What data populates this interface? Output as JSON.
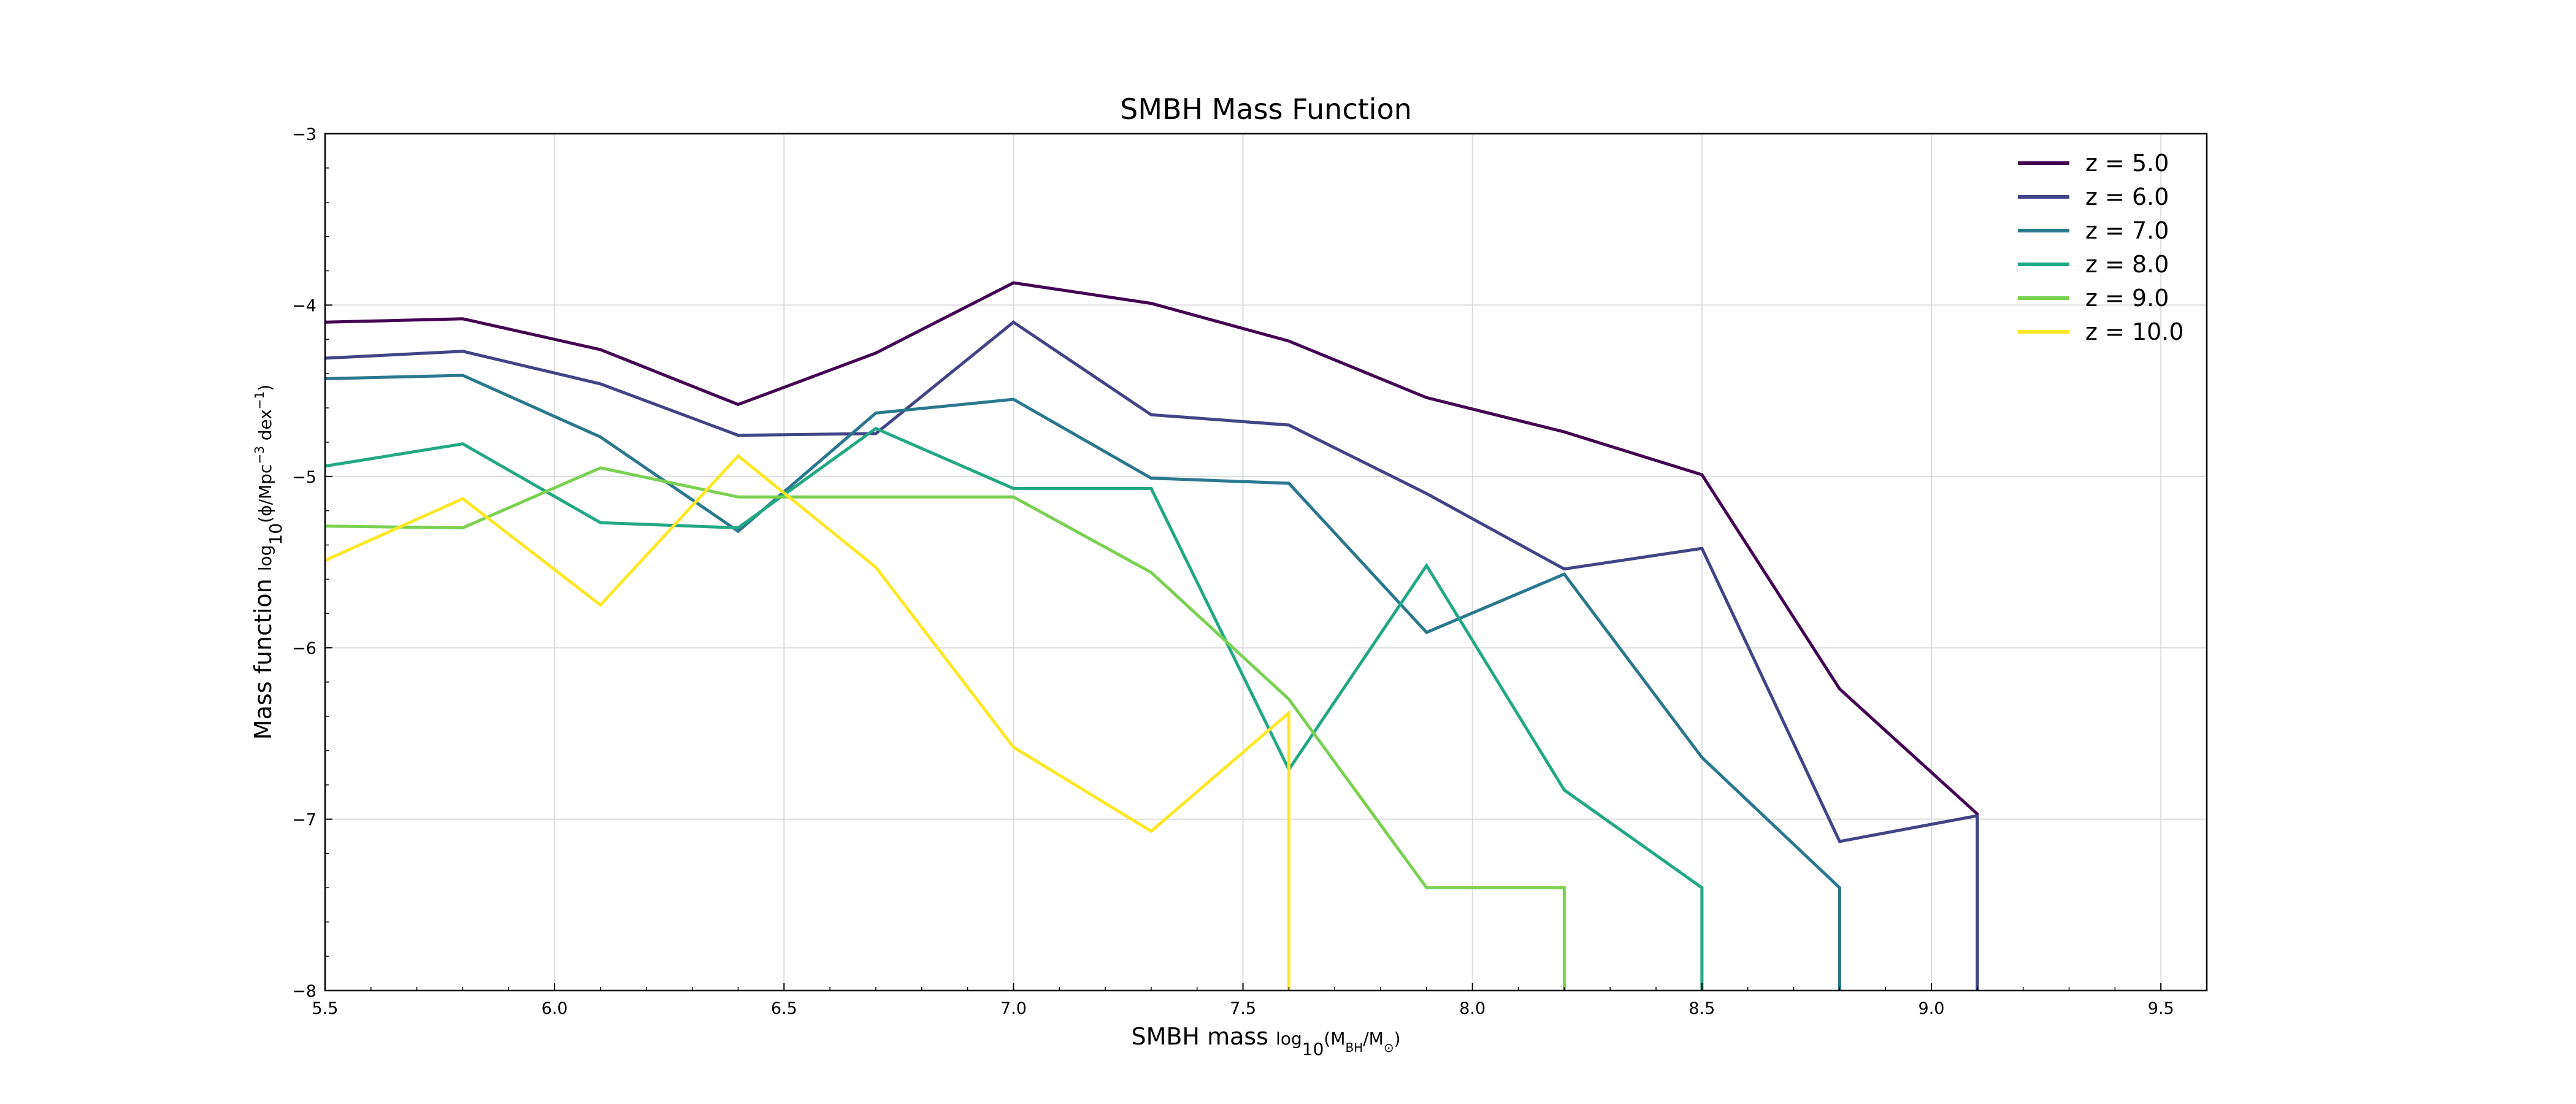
{
  "chart_data": {
    "type": "line",
    "title": "SMBH Mass Function",
    "xlabel": {
      "prefix": "SMBH mass ",
      "log": "log",
      "log_sub": "10",
      "open": "(M",
      "m_sub": "BH",
      "mid": "/M",
      "sun": "⊙",
      "close": ")"
    },
    "ylabel": {
      "prefix": "Mass function ",
      "log": "log",
      "log_sub": "10",
      "body": "(ϕ/Mpc",
      "exp1": "−3",
      "mid": " dex",
      "exp2": "−1",
      "close": ")"
    },
    "xlim": [
      5.5,
      9.6
    ],
    "ylim": [
      -8,
      -3
    ],
    "xticks": [
      5.5,
      6.0,
      6.5,
      7.0,
      7.5,
      8.0,
      8.5,
      9.0,
      9.5
    ],
    "xtick_labels": [
      "5.5",
      "6.0",
      "6.5",
      "7.0",
      "7.5",
      "8.0",
      "8.5",
      "9.0",
      "9.5"
    ],
    "yticks": [
      -3,
      -4,
      -5,
      -6,
      -7,
      -8
    ],
    "ytick_labels": [
      "−3",
      "−4",
      "−5",
      "−6",
      "−7",
      "−8"
    ],
    "grid": true,
    "legend_position": "top-right",
    "series": [
      {
        "name": "z = 5.0",
        "color": "#440154",
        "points": [
          [
            5.5,
            -4.1
          ],
          [
            5.8,
            -4.08
          ],
          [
            6.1,
            -4.26
          ],
          [
            6.4,
            -4.58
          ],
          [
            6.7,
            -4.28
          ],
          [
            7.0,
            -3.87
          ],
          [
            7.3,
            -3.99
          ],
          [
            7.6,
            -4.21
          ],
          [
            7.9,
            -4.54
          ],
          [
            8.2,
            -4.74
          ],
          [
            8.5,
            -4.99
          ],
          [
            8.8,
            -6.24
          ],
          [
            9.1,
            -6.97
          ],
          [
            9.1,
            -8.0
          ]
        ]
      },
      {
        "name": "z = 6.0",
        "color": "#414487",
        "points": [
          [
            5.5,
            -4.31
          ],
          [
            5.8,
            -4.27
          ],
          [
            6.1,
            -4.46
          ],
          [
            6.4,
            -4.76
          ],
          [
            6.7,
            -4.75
          ],
          [
            7.0,
            -4.1
          ],
          [
            7.3,
            -4.64
          ],
          [
            7.6,
            -4.7
          ],
          [
            7.9,
            -5.1
          ],
          [
            8.2,
            -5.54
          ],
          [
            8.5,
            -5.42
          ],
          [
            8.8,
            -7.13
          ],
          [
            9.1,
            -6.98
          ],
          [
            9.1,
            -8.0
          ]
        ]
      },
      {
        "name": "z = 7.0",
        "color": "#2a788e",
        "points": [
          [
            5.5,
            -4.43
          ],
          [
            5.8,
            -4.41
          ],
          [
            6.1,
            -4.77
          ],
          [
            6.4,
            -5.32
          ],
          [
            6.7,
            -4.63
          ],
          [
            7.0,
            -4.55
          ],
          [
            7.3,
            -5.01
          ],
          [
            7.6,
            -5.04
          ],
          [
            7.9,
            -5.91
          ],
          [
            8.2,
            -5.57
          ],
          [
            8.5,
            -6.64
          ],
          [
            8.8,
            -7.4
          ],
          [
            8.8,
            -8.0
          ]
        ]
      },
      {
        "name": "z = 8.0",
        "color": "#22a884",
        "points": [
          [
            5.5,
            -4.94
          ],
          [
            5.8,
            -4.81
          ],
          [
            6.1,
            -5.27
          ],
          [
            6.4,
            -5.3
          ],
          [
            6.7,
            -4.72
          ],
          [
            7.0,
            -5.07
          ],
          [
            7.3,
            -5.07
          ],
          [
            7.6,
            -6.71
          ],
          [
            7.9,
            -5.52
          ],
          [
            8.2,
            -6.83
          ],
          [
            8.5,
            -7.4
          ],
          [
            8.5,
            -8.0
          ]
        ]
      },
      {
        "name": "z = 9.0",
        "color": "#7ad151",
        "points": [
          [
            5.5,
            -5.29
          ],
          [
            5.8,
            -5.3
          ],
          [
            6.1,
            -4.95
          ],
          [
            6.4,
            -5.12
          ],
          [
            6.7,
            -5.12
          ],
          [
            7.0,
            -5.12
          ],
          [
            7.3,
            -5.56
          ],
          [
            7.6,
            -6.3
          ],
          [
            7.9,
            -7.4
          ],
          [
            8.2,
            -7.4
          ],
          [
            8.2,
            -8.0
          ]
        ]
      },
      {
        "name": "z = 10.0",
        "color": "#fde725",
        "points": [
          [
            5.5,
            -5.49
          ],
          [
            5.8,
            -5.13
          ],
          [
            6.1,
            -5.75
          ],
          [
            6.4,
            -4.88
          ],
          [
            6.7,
            -5.53
          ],
          [
            7.0,
            -6.58
          ],
          [
            7.3,
            -7.07
          ],
          [
            7.6,
            -6.38
          ],
          [
            7.6,
            -8.0
          ]
        ]
      }
    ]
  }
}
